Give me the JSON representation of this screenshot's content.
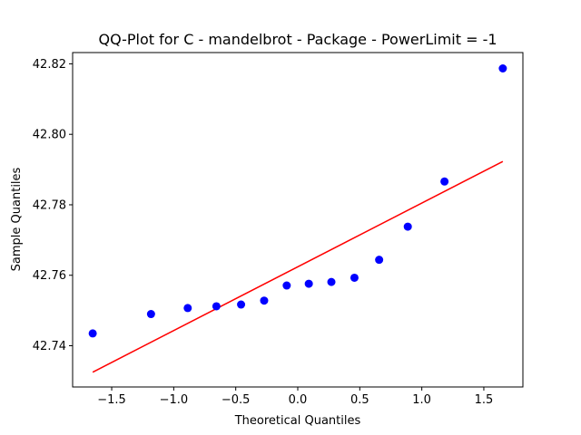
{
  "chart_data": {
    "type": "scatter",
    "title": "QQ-Plot for C - mandelbrot - Package - PowerLimit = -1",
    "xlabel": "Theoretical Quantiles",
    "ylabel": "Sample Quantiles",
    "xlim": [
      -1.815,
      1.815
    ],
    "ylim": [
      42.7283,
      42.8232
    ],
    "xticks": [
      -1.5,
      -1.0,
      -0.5,
      0.0,
      0.5,
      1.0,
      1.5
    ],
    "xtick_labels": [
      "−1.5",
      "−1.0",
      "−0.5",
      "0.0",
      "0.5",
      "1.0",
      "1.5"
    ],
    "yticks": [
      42.74,
      42.76,
      42.78,
      42.8,
      42.82
    ],
    "ytick_labels": [
      "42.74",
      "42.76",
      "42.78",
      "42.80",
      "42.82"
    ],
    "grid": false,
    "points": {
      "color": "#0000ff",
      "x": [
        -1.653,
        -1.183,
        -0.887,
        -0.656,
        -0.457,
        -0.271,
        -0.089,
        0.089,
        0.271,
        0.457,
        0.656,
        0.887,
        1.183,
        1.653
      ],
      "y": [
        42.7435,
        42.749,
        42.7507,
        42.7512,
        42.7517,
        42.7528,
        42.7571,
        42.7576,
        42.7581,
        42.7593,
        42.7644,
        42.7738,
        42.7866,
        42.8187
      ]
    },
    "reference_line": {
      "color": "#ff0000",
      "x": [
        -1.653,
        1.653
      ],
      "y": [
        42.7325,
        42.7923
      ]
    }
  }
}
